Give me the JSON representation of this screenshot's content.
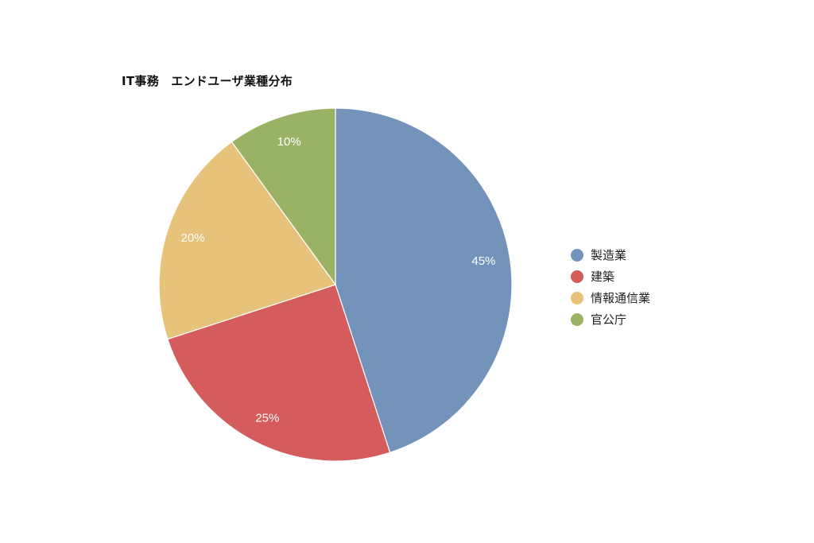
{
  "chart_data": {
    "type": "pie",
    "title": "IT事務　エンドユーザ業種分布",
    "categories": [
      "製造業",
      "建築",
      "情報通信業",
      "官公庁"
    ],
    "values": [
      45,
      25,
      20,
      10
    ],
    "data_labels": [
      "45%",
      "25%",
      "20%",
      "10%"
    ],
    "colors": [
      "#7393bb",
      "#d55c5c",
      "#e7c27a",
      "#9ab265"
    ],
    "legend_position": "right",
    "start_angle": "12 o'clock",
    "direction": "clockwise"
  }
}
